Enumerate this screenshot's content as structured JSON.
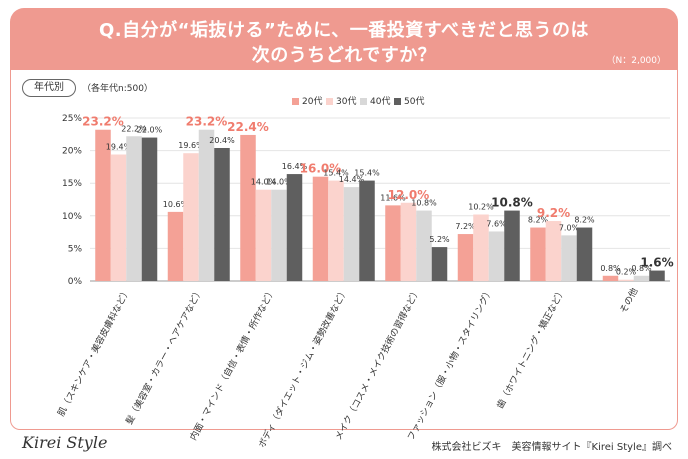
{
  "header": {
    "question_line1": "Q.自分が“垢抜ける”ために、一番投資すべきだと思うのは",
    "question_line2": "次のうちどれですか？",
    "n_note": "（N：2,000）",
    "bg_color": "#ef9a90"
  },
  "segment": {
    "tag": "年代別",
    "note": "（各年代n:500）"
  },
  "footer": {
    "logo": "Kirei Style",
    "credit": "株式会社ビズキ　美容情報サイト『Kirei Style』調べ"
  },
  "chart_data": {
    "type": "bar",
    "ylim": [
      0,
      25
    ],
    "yticks": [
      "0%",
      "5%",
      "10%",
      "15%",
      "20%",
      "25%"
    ],
    "grid": true,
    "legend_position": "top-center",
    "categories": [
      "肌（スキンケア・美容皮膚科など）",
      "髪（美容室・カラー・ヘアケアなど）",
      "内面・マインド（自信・表情・所作など）",
      "ボディ（ダイエット・ジム・姿勢改善など）",
      "メイク（コスメ・メイク技術の習得など）",
      "ファッション（服・小物・スタイリング）",
      "歯（ホワイトニング・矯正など）",
      "その他"
    ],
    "series": [
      {
        "name": "20代",
        "color": "#f4a196",
        "values": [
          23.2,
          10.6,
          22.4,
          16.0,
          11.6,
          7.2,
          8.2,
          0.8
        ]
      },
      {
        "name": "30代",
        "color": "#fbd3cd",
        "values": [
          19.4,
          19.6,
          14.0,
          15.4,
          12.0,
          10.2,
          9.2,
          0.2
        ]
      },
      {
        "name": "40代",
        "color": "#d8d8d8",
        "values": [
          22.2,
          23.2,
          14.0,
          14.4,
          10.8,
          7.6,
          7.0,
          0.8
        ]
      },
      {
        "name": "50代",
        "color": "#5f5f5f",
        "values": [
          22.0,
          20.4,
          16.4,
          15.4,
          5.2,
          10.8,
          8.2,
          1.6
        ]
      }
    ],
    "data_labels": [
      [
        "23.2%",
        "10.6%",
        "22.4%",
        "16.0%",
        "11.6%",
        "7.2%",
        "8.2%",
        "0.8%"
      ],
      [
        "19.4%",
        "19.6%",
        "14.0%",
        "15.4%",
        "12.0%",
        "10.2%",
        "9.2%",
        "0.2%"
      ],
      [
        "22.2%",
        "23.2%",
        "14.0%",
        "14.4%",
        "10.8%",
        "7.6%",
        "7.0%",
        "0.8%"
      ],
      [
        "22.0%",
        "20.4%",
        "16.4%",
        "15.4%",
        "5.2%",
        "10.8%",
        "8.2%",
        "1.6%"
      ]
    ],
    "highlight_color": "#f07c6e",
    "category_max_highlight": [
      [
        0,
        0
      ],
      [
        2,
        1
      ],
      [
        0,
        2
      ],
      [
        0,
        3
      ],
      [
        1,
        4
      ],
      [
        3,
        5
      ],
      [
        1,
        6
      ],
      [
        3,
        7
      ]
    ]
  }
}
